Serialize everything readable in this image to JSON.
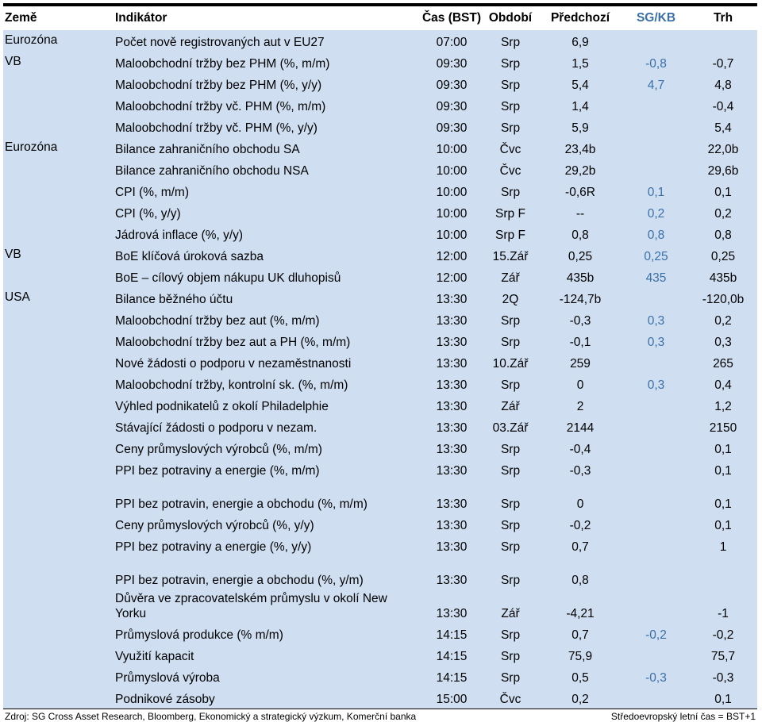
{
  "columns": [
    "Země",
    "Indikátor",
    "Čas (BST)",
    "Období",
    "Předchozí",
    "SG/KB",
    "Trh"
  ],
  "rows": [
    {
      "country": "Eurozóna",
      "indicator": "Počet nově registrovaných aut v EU27",
      "time": "07:00",
      "period": "Srp",
      "prev": "6,9",
      "sg": "",
      "market": ""
    },
    {
      "country": "VB",
      "indicator": "Maloobchodní tržby bez PHM (%, m/m)",
      "time": "09:30",
      "period": "Srp",
      "prev": "1,5",
      "sg": "-0,8",
      "market": "-0,7"
    },
    {
      "country": "",
      "indicator": "Maloobchodní tržby bez PHM (%, y/y)",
      "time": "09:30",
      "period": "Srp",
      "prev": "5,4",
      "sg": "4,7",
      "market": "4,8"
    },
    {
      "country": "",
      "indicator": "Maloobchodní tržby vč. PHM (%, m/m)",
      "time": "09:30",
      "period": "Srp",
      "prev": "1,4",
      "sg": "",
      "market": "-0,4"
    },
    {
      "country": "",
      "indicator": "Maloobchodní tržby vč. PHM (%, y/y)",
      "time": "09:30",
      "period": "Srp",
      "prev": "5,9",
      "sg": "",
      "market": "5,4"
    },
    {
      "country": "Eurozóna",
      "indicator": "Bilance zahraničního obchodu SA",
      "time": "10:00",
      "period": "Čvc",
      "prev": "23,4b",
      "sg": "",
      "market": "22,0b"
    },
    {
      "country": "",
      "indicator": "Bilance zahraničního obchodu NSA",
      "time": "10:00",
      "period": "Čvc",
      "prev": "29,2b",
      "sg": "",
      "market": "29,6b"
    },
    {
      "country": "",
      "indicator": "CPI (%, m/m)",
      "time": "10:00",
      "period": "Srp",
      "prev": "-0,6R",
      "sg": "0,1",
      "market": "0,1"
    },
    {
      "country": "",
      "indicator": "CPI (%, y/y)",
      "time": "10:00",
      "period": "Srp F",
      "prev": "--",
      "sg": "0,2",
      "market": "0,2"
    },
    {
      "country": "",
      "indicator": "Jádrová inflace (%, y/y)",
      "time": "10:00",
      "period": "Srp F",
      "prev": "0,8",
      "sg": "0,8",
      "market": "0,8"
    },
    {
      "country": "VB",
      "indicator": "BoE klíčová úroková sazba",
      "time": "12:00",
      "period": "15.Zář",
      "prev": "0,25",
      "sg": "0,25",
      "market": "0,25"
    },
    {
      "country": "",
      "indicator": "BoE – cílový objem nákupu UK dluhopisů",
      "time": "12:00",
      "period": "Zář",
      "prev": "435b",
      "sg": "435",
      "market": "435b"
    },
    {
      "country": "USA",
      "indicator": "Bilance běžného účtu",
      "time": "13:30",
      "period": "2Q",
      "prev": "-124,7b",
      "sg": "",
      "market": "-120,0b"
    },
    {
      "country": "",
      "indicator": "Maloobchodní tržby bez aut (%, m/m)",
      "time": "13:30",
      "period": "Srp",
      "prev": "-0,3",
      "sg": "0,3",
      "market": "0,2"
    },
    {
      "country": "",
      "indicator": "Maloobchodní tržby bez aut a PH (%, m/m)",
      "time": "13:30",
      "period": "Srp",
      "prev": "-0,1",
      "sg": "0,3",
      "market": "0,3"
    },
    {
      "country": "",
      "indicator": "Nové žádosti o podporu v nezaměstnanosti",
      "time": "13:30",
      "period": "10.Zář",
      "prev": "259",
      "sg": "",
      "market": "265"
    },
    {
      "country": "",
      "indicator": "Maloobchodní tržby, kontrolní sk. (%, m/m)",
      "time": "13:30",
      "period": "Srp",
      "prev": "0",
      "sg": "0,3",
      "market": "0,4"
    },
    {
      "country": "",
      "indicator": "Výhled podnikatelů z okolí Philadelphie",
      "time": "13:30",
      "period": "Zář",
      "prev": "2",
      "sg": "",
      "market": "1,2"
    },
    {
      "country": "",
      "indicator": "Stávající žádosti o podporu v nezam.",
      "time": "13:30",
      "period": "03.Zář",
      "prev": "2144",
      "sg": "",
      "market": "2150"
    },
    {
      "country": "",
      "indicator": "Ceny průmyslových výrobců (%, m/m)",
      "time": "13:30",
      "period": "Srp",
      "prev": "-0,4",
      "sg": "",
      "market": "0,1"
    },
    {
      "country": "",
      "indicator": "PPI bez potraviny a energie (%, m/m)",
      "time": "13:30",
      "period": "Srp",
      "prev": "-0,3",
      "sg": "",
      "market": "0,1"
    },
    {
      "country": "",
      "indicator": "PPI bez potravin, energie a obchodu (%, m/m)",
      "time": "13:30",
      "period": "Srp",
      "prev": "0",
      "sg": "",
      "market": "0,1"
    },
    {
      "country": "",
      "indicator": "Ceny průmyslových výrobců (%, y/y)",
      "time": "13:30",
      "period": "Srp",
      "prev": "-0,2",
      "sg": "",
      "market": "0,1"
    },
    {
      "country": "",
      "indicator": "PPI bez potraviny a energie (%, y/y)",
      "time": "13:30",
      "period": "Srp",
      "prev": "0,7",
      "sg": "",
      "market": "1"
    },
    {
      "country": "",
      "indicator": "PPI bez potravin, energie a obchodu (%, y/m)",
      "time": "13:30",
      "period": "Srp",
      "prev": "0,8",
      "sg": "",
      "market": ""
    },
    {
      "country": "",
      "indicator": "Důvěra ve zpracovatelském průmyslu v okolí New Yorku",
      "time": "13:30",
      "period": "Zář",
      "prev": "-4,21",
      "sg": "",
      "market": "-1"
    },
    {
      "country": "",
      "indicator": "Průmyslová produkce (% m/m)",
      "time": "14:15",
      "period": "Srp",
      "prev": "0,7",
      "sg": "-0,2",
      "market": "-0,2"
    },
    {
      "country": "",
      "indicator": "Využití kapacit",
      "time": "14:15",
      "period": "Srp",
      "prev": "75,9",
      "sg": "",
      "market": "75,7"
    },
    {
      "country": "",
      "indicator": "Průmyslová výroba",
      "time": "14:15",
      "period": "Srp",
      "prev": "0,5",
      "sg": "-0,3",
      "market": "-0,3"
    },
    {
      "country": "",
      "indicator": "Podnikové zásoby",
      "time": "15:00",
      "period": "Čvc",
      "prev": "0,2",
      "sg": "",
      "market": "0,1"
    }
  ],
  "footer": {
    "source": "Zdroj: SG Cross Asset Research, Bloomberg, Ekonomický a strategický výzkum, Komerční banka",
    "note": "Středoevropský letní čas = BST+1"
  },
  "colors": {
    "row_bg": "#cfdff1",
    "sg_text": "#3a6fa8"
  }
}
